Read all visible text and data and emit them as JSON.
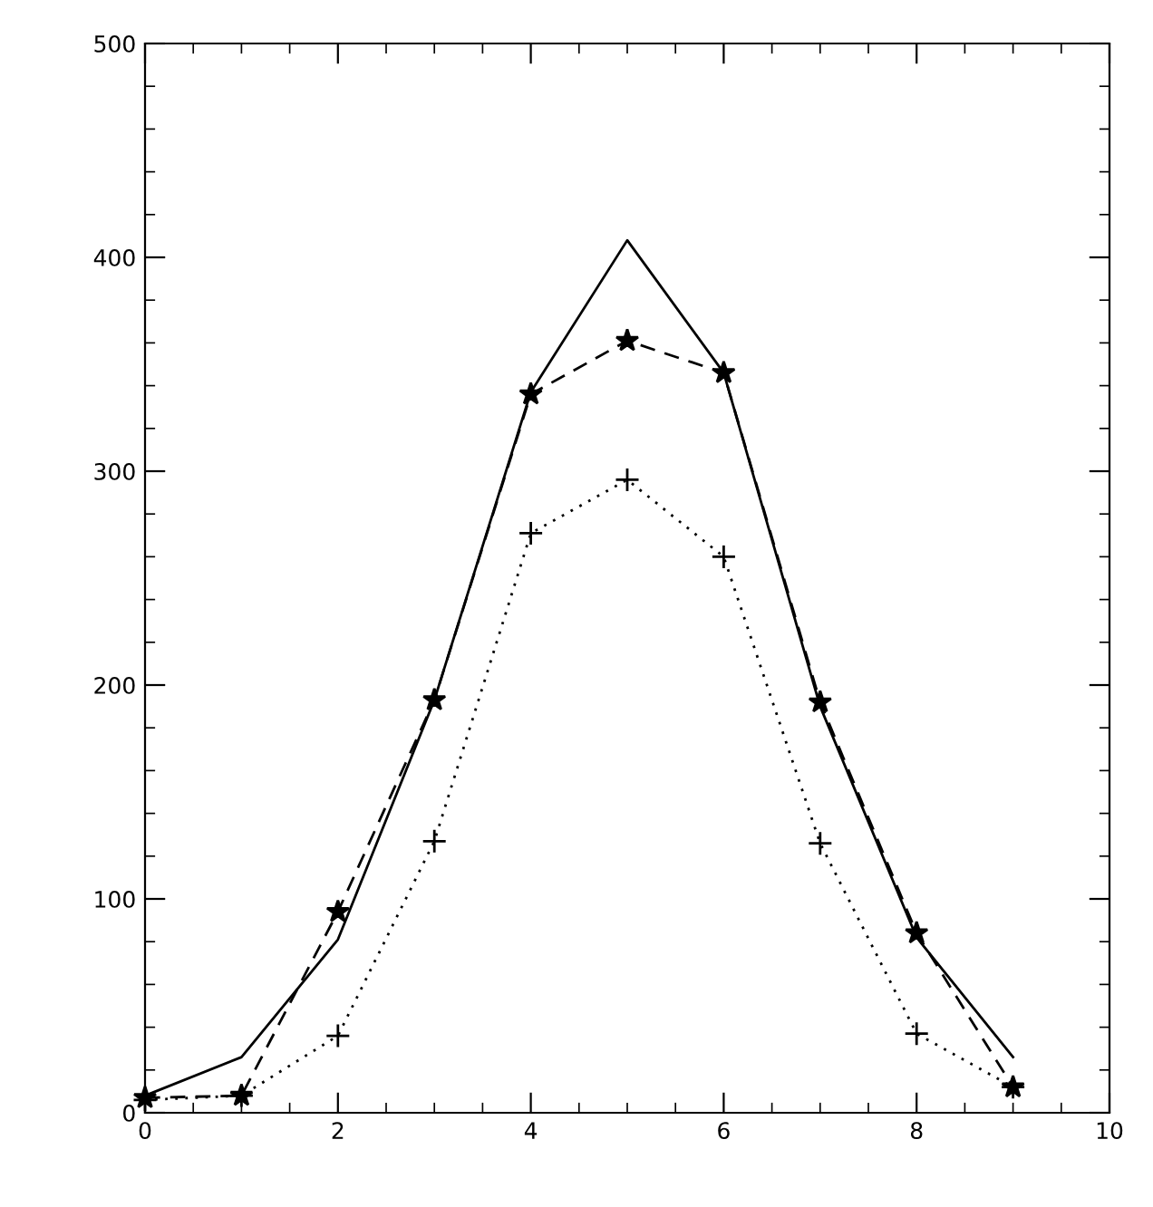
{
  "chart_data": {
    "type": "line",
    "x": [
      0,
      1,
      2,
      3,
      4,
      5,
      6,
      7,
      8,
      9
    ],
    "series": [
      {
        "color": "#000000",
        "line_style": "solid",
        "marker": "none",
        "values": [
          8,
          26,
          81,
          193,
          337,
          408,
          346,
          190,
          82,
          26
        ]
      },
      {
        "color": "#000000",
        "line_style": "dashed",
        "marker": "star",
        "values": [
          7,
          8,
          94,
          193,
          336,
          361,
          346,
          192,
          84,
          12
        ]
      },
      {
        "color": "#000000",
        "line_style": "dotted",
        "marker": "cross",
        "values": [
          6,
          8,
          36,
          127,
          271,
          296,
          260,
          126,
          37,
          12
        ]
      }
    ],
    "xlim": [
      0,
      10
    ],
    "xticks": [
      0,
      2,
      4,
      6,
      8,
      10
    ],
    "ylim": [
      0,
      500
    ],
    "yticks": [
      0,
      100,
      200,
      300,
      400,
      500
    ],
    "grid": false,
    "legend": false
  }
}
